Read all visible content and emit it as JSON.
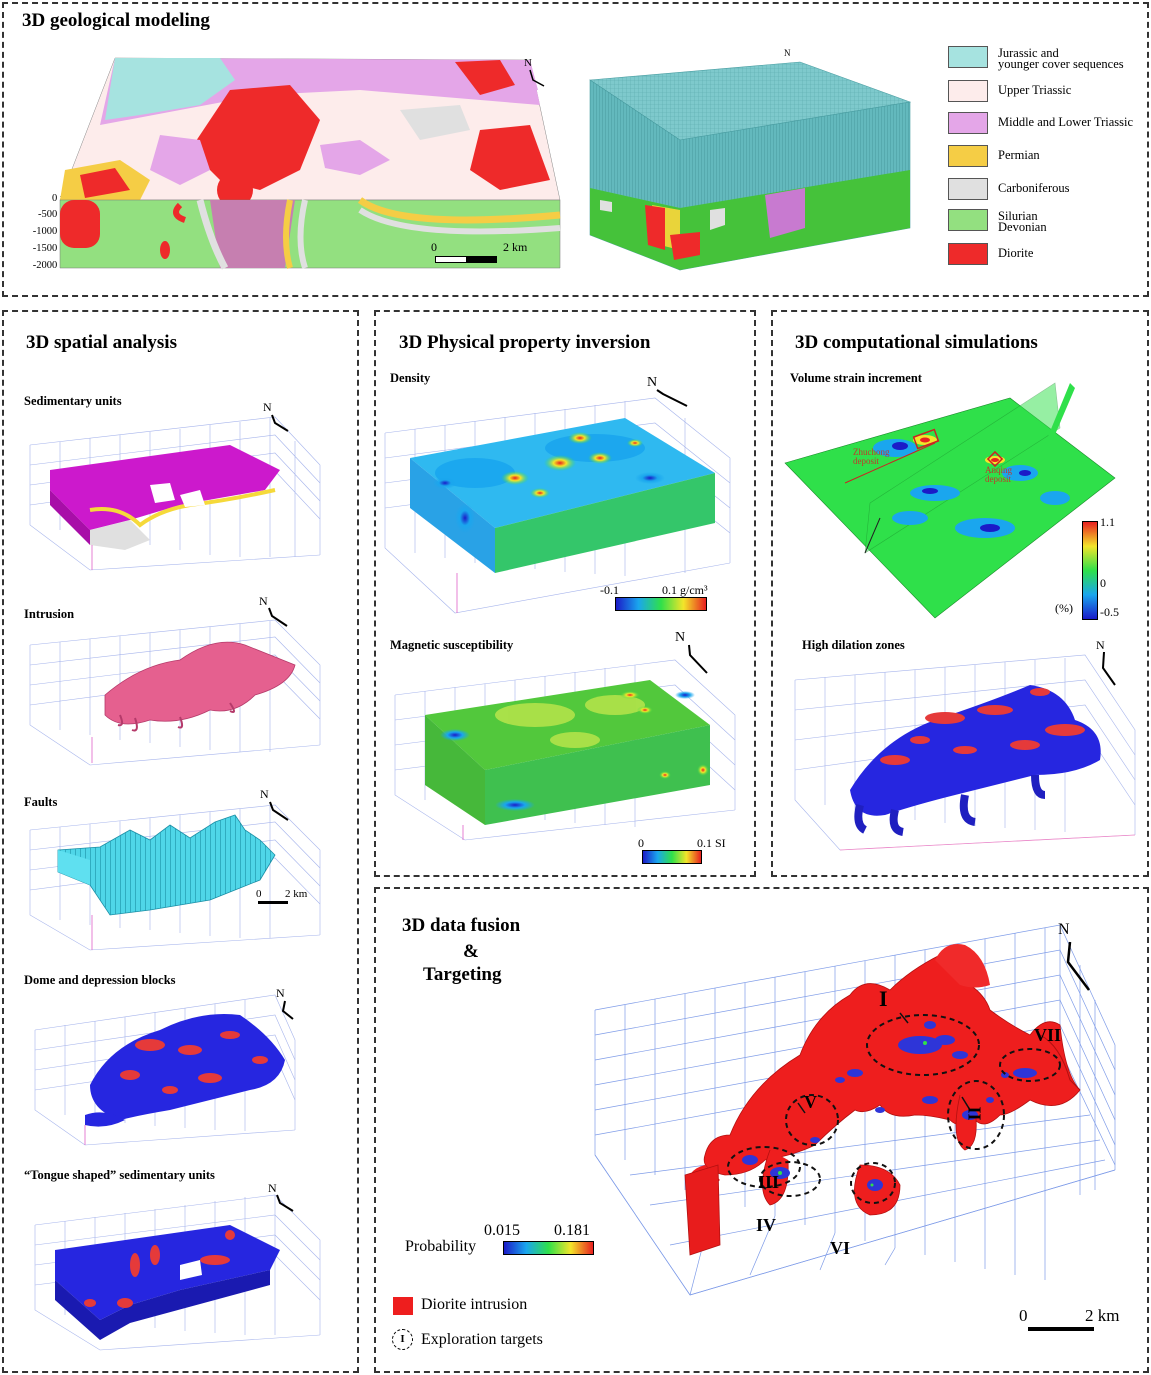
{
  "top": {
    "title": "3D geological modeling",
    "north": "N",
    "depth_labels": [
      "0 m",
      "-500 m",
      "-1000 m",
      "-1500 m",
      "-2000 m"
    ],
    "scale_left": "0",
    "scale_right": "2 km",
    "legend": [
      {
        "label1": "Jurassic and",
        "label2": "younger cover sequences",
        "color": "#a6e3e0"
      },
      {
        "label1": "Upper Triassic",
        "label2": "",
        "color": "#fdeceb"
      },
      {
        "label1": "Middle and Lower Triassic",
        "label2": "",
        "color": "#e4a6e8"
      },
      {
        "label1": "Permian",
        "label2": "",
        "color": "#f5cd45"
      },
      {
        "label1": "Carboniferous",
        "label2": "",
        "color": "#e0e0e0"
      },
      {
        "label1": "Silurian",
        "label2": "Devonian",
        "color": "#93e080"
      },
      {
        "label1": "Diorite",
        "label2": "",
        "color": "#ee2a2a"
      }
    ]
  },
  "spatial": {
    "title": "3D spatial analysis",
    "items": [
      "Sedimentary units",
      "Intrusion",
      "Faults",
      "Dome and depression blocks",
      "“Tongue shaped” sedimentary units"
    ],
    "north": "N",
    "faults_scale_left": "0",
    "faults_scale_right": "2 km"
  },
  "inversion": {
    "title": "3D Physical property inversion",
    "density_label": "Density",
    "density_min": "-0.1",
    "density_max": "0.1 g/cm³",
    "mag_label": "Magnetic susceptibility",
    "mag_min": "0",
    "mag_max": "0.1 SI",
    "north": "N"
  },
  "simulation": {
    "title": "3D computational simulations",
    "strain_label": "Volume strain increment",
    "deposit1": "Zhuchong deposit",
    "deposit2": "Anqing deposit",
    "scale_max": "1.1",
    "scale_mid": "0",
    "scale_min": "-0.5",
    "unit": "(%)",
    "dilation_label": "High dilation zones",
    "north": "N"
  },
  "fusion": {
    "title1": "3D data fusion",
    "title2": "&",
    "title3": "Targeting",
    "prob_label": "Probability",
    "prob_min": "0.015",
    "prob_max": "0.181",
    "legend_diorite": "Diorite intrusion",
    "legend_targets": "Exploration targets",
    "legend_target_symbol": "I",
    "targets": [
      "I",
      "II",
      "III",
      "IV",
      "V",
      "VI",
      "VII"
    ],
    "scale_left": "0",
    "scale_right": "2 km",
    "north": "N"
  },
  "colors": {
    "diorite": "#ee2a2a",
    "cover": "#a6e3e0",
    "silurian": "#93e080",
    "triassic_ml": "#e4a6e8",
    "high_prob": "#2e35d8",
    "fault": "#3cc8dc"
  }
}
